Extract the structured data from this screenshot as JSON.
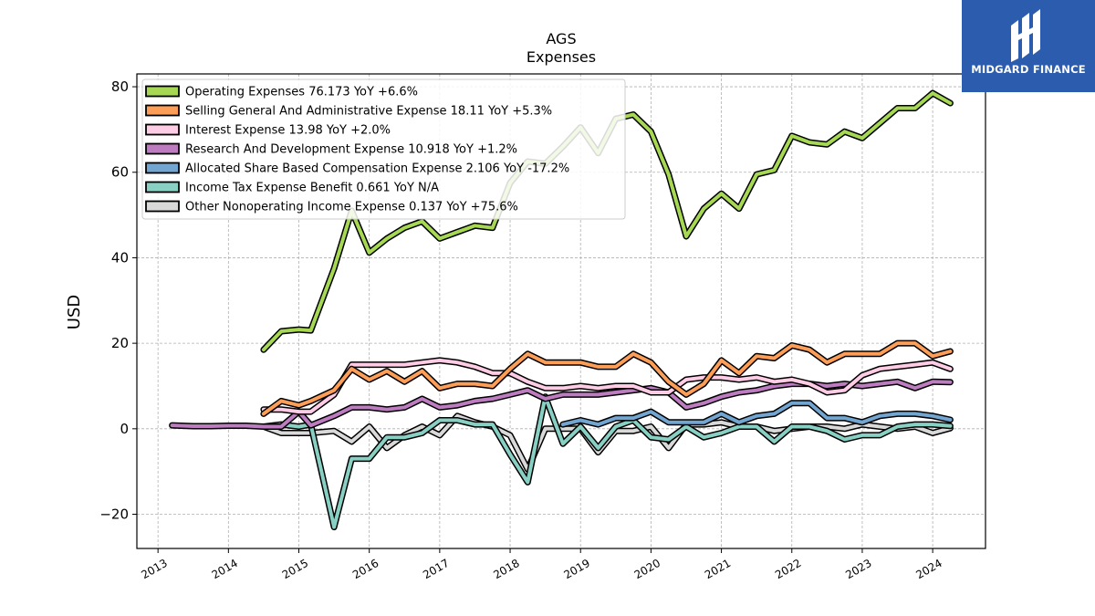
{
  "logo": {
    "text": "MIDGARD FINANCE",
    "icon": "midgard-logo-icon",
    "bg_color": "#2b5cad"
  },
  "chart_data": {
    "type": "line",
    "title": "AGS",
    "subtitle": "Expenses",
    "xlabel": "",
    "ylabel": "USD",
    "xlim": [
      2012.7,
      2024.75
    ],
    "ylim": [
      -28,
      83
    ],
    "grid": true,
    "legend_position": "top-left",
    "x_ticks": [
      "2013",
      "2014",
      "2015",
      "2016",
      "2017",
      "2018",
      "2019",
      "2020",
      "2021",
      "2022",
      "2023",
      "2024"
    ],
    "y_ticks": [
      80,
      60,
      40,
      20,
      0,
      -20
    ],
    "y_tick_labels": [
      "80",
      "60",
      "40",
      "20",
      "0",
      "−20"
    ],
    "series": [
      {
        "name": "Operating Expenses",
        "legend": "Operating Expenses  76.173 YoY +6.6%",
        "color": "#a6d854",
        "x": [
          2014.5,
          2014.75,
          2015.0,
          2015.17,
          2015.5,
          2015.75,
          2016.0,
          2016.25,
          2016.5,
          2016.75,
          2017.0,
          2017.25,
          2017.5,
          2017.75,
          2018.0,
          2018.25,
          2018.5,
          2018.75,
          2019.0,
          2019.25,
          2019.5,
          2019.75,
          2020.0,
          2020.25,
          2020.5,
          2020.75,
          2021.0,
          2021.25,
          2021.5,
          2021.75,
          2022.0,
          2022.25,
          2022.5,
          2022.75,
          2023.0,
          2023.25,
          2023.5,
          2023.75,
          2024.0,
          2024.25
        ],
        "y": [
          18.5,
          22.8,
          23.2,
          23.0,
          37.5,
          51.0,
          41.2,
          44.5,
          47.0,
          48.5,
          44.5,
          46.0,
          47.5,
          47.0,
          57.5,
          62.5,
          62.0,
          66.0,
          70.5,
          64.5,
          72.5,
          73.5,
          69.5,
          59.5,
          45.0,
          51.5,
          55.0,
          51.5,
          59.5,
          60.5,
          68.5,
          67.0,
          66.5,
          69.5,
          68.0,
          71.5,
          75.0,
          75.0,
          78.5,
          76.173
        ]
      },
      {
        "name": "Selling General And Administrative Expense",
        "legend": "Selling General And Administrative Expense  18.11 YoY +5.3%",
        "color": "#fc9e58",
        "x": [
          2014.5,
          2014.75,
          2015.0,
          2015.17,
          2015.5,
          2015.75,
          2016.0,
          2016.25,
          2016.5,
          2016.75,
          2017.0,
          2017.25,
          2017.5,
          2017.75,
          2018.0,
          2018.25,
          2018.5,
          2018.75,
          2019.0,
          2019.25,
          2019.5,
          2019.75,
          2020.0,
          2020.25,
          2020.5,
          2020.75,
          2021.0,
          2021.25,
          2021.5,
          2021.75,
          2022.0,
          2022.25,
          2022.5,
          2022.75,
          2023.0,
          2023.25,
          2023.5,
          2023.75,
          2024.0,
          2024.25
        ],
        "y": [
          3.5,
          6.5,
          5.5,
          6.5,
          9.0,
          14.0,
          11.5,
          13.5,
          11.0,
          13.5,
          9.5,
          10.5,
          10.5,
          10.0,
          14.0,
          17.5,
          15.5,
          15.5,
          15.5,
          14.5,
          14.5,
          17.5,
          15.5,
          11.0,
          8.0,
          10.5,
          16.0,
          13.0,
          17.0,
          16.5,
          19.5,
          18.5,
          15.5,
          17.5,
          17.5,
          17.5,
          20.0,
          20.0,
          17.0,
          18.11
        ]
      },
      {
        "name": "Interest Expense",
        "legend": "Interest Expense  13.98 YoY +2.0%",
        "color": "#ffcce6",
        "x": [
          2014.5,
          2014.75,
          2015.0,
          2015.17,
          2015.5,
          2015.75,
          2016.0,
          2016.25,
          2016.5,
          2016.75,
          2017.0,
          2017.25,
          2017.5,
          2017.75,
          2018.0,
          2018.25,
          2018.5,
          2018.75,
          2019.0,
          2019.25,
          2019.5,
          2019.75,
          2020.0,
          2020.25,
          2020.5,
          2020.75,
          2021.0,
          2021.25,
          2021.5,
          2021.75,
          2022.0,
          2022.25,
          2022.5,
          2022.75,
          2023.0,
          2023.25,
          2023.5,
          2023.75,
          2024.0,
          2024.25
        ],
        "y": [
          4.5,
          4.5,
          4.0,
          4.0,
          8.0,
          15.0,
          15.0,
          15.0,
          15.0,
          15.5,
          16.0,
          15.5,
          14.5,
          13.0,
          13.0,
          11.0,
          9.5,
          9.5,
          10.0,
          9.5,
          10.0,
          10.0,
          8.5,
          8.5,
          11.5,
          12.0,
          12.0,
          11.5,
          12.0,
          11.0,
          11.5,
          10.5,
          8.5,
          9.0,
          12.5,
          14.0,
          14.5,
          15.0,
          15.5,
          13.98
        ]
      },
      {
        "name": "Research And Development Expense",
        "legend": "Research And Development Expense  10.918 YoY +1.2%",
        "color": "#bd7cc0",
        "x": [
          2013.2,
          2013.5,
          2013.75,
          2014.0,
          2014.25,
          2014.5,
          2014.75,
          2015.0,
          2015.17,
          2015.5,
          2015.75,
          2016.0,
          2016.25,
          2016.5,
          2016.75,
          2017.0,
          2017.25,
          2017.5,
          2017.75,
          2018.0,
          2018.25,
          2018.5,
          2018.75,
          2019.0,
          2019.25,
          2019.5,
          2019.75,
          2020.0,
          2020.25,
          2020.5,
          2020.75,
          2021.0,
          2021.25,
          2021.5,
          2021.75,
          2022.0,
          2022.25,
          2022.5,
          2022.75,
          2023.0,
          2023.25,
          2023.5,
          2023.75,
          2024.0,
          2024.25
        ],
        "y": [
          0.8,
          0.6,
          0.6,
          0.7,
          0.7,
          0.5,
          0.5,
          4.0,
          0.8,
          3.0,
          5.0,
          5.0,
          4.5,
          5.0,
          7.0,
          5.0,
          5.5,
          6.5,
          7.0,
          8.0,
          9.0,
          7.0,
          8.0,
          8.0,
          8.0,
          8.5,
          9.0,
          9.5,
          8.5,
          5.0,
          6.0,
          7.5,
          8.5,
          9.0,
          10.0,
          10.5,
          10.5,
          10.0,
          10.5,
          10.0,
          10.5,
          11.0,
          9.5,
          11.0,
          10.918
        ]
      },
      {
        "name": "Allocated Share Based Compensation Expense",
        "legend": "Allocated Share Based Compensation Expense  2.106 YoY -17.2%",
        "color": "#72a6d1",
        "x": [
          2018.75,
          2019.0,
          2019.25,
          2019.5,
          2019.75,
          2020.0,
          2020.25,
          2020.5,
          2020.75,
          2021.0,
          2021.25,
          2021.5,
          2021.75,
          2022.0,
          2022.25,
          2022.5,
          2022.75,
          2023.0,
          2023.25,
          2023.5,
          2023.75,
          2024.0,
          2024.25
        ],
        "y": [
          1.0,
          2.0,
          1.0,
          2.5,
          2.5,
          4.0,
          1.5,
          1.5,
          1.5,
          3.5,
          1.5,
          3.0,
          3.5,
          6.0,
          6.0,
          2.5,
          2.5,
          1.5,
          3.0,
          3.5,
          3.5,
          3.0,
          2.106
        ]
      },
      {
        "name": "Income Tax Expense Benefit",
        "legend": "Income Tax Expense Benefit  0.661 YoY N/A",
        "color": "#88d0c3",
        "x": [
          2014.5,
          2014.75,
          2015.0,
          2015.17,
          2015.5,
          2015.75,
          2016.0,
          2016.25,
          2016.5,
          2016.75,
          2017.0,
          2017.25,
          2017.5,
          2017.75,
          2018.0,
          2018.25,
          2018.5,
          2018.75,
          2019.0,
          2019.25,
          2019.5,
          2019.75,
          2020.0,
          2020.25,
          2020.5,
          2020.75,
          2021.0,
          2021.25,
          2021.5,
          2021.75,
          2022.0,
          2022.25,
          2022.5,
          2022.75,
          2023.0,
          2023.25,
          2023.5,
          2023.75,
          2024.0,
          2024.25
        ],
        "y": [
          0.5,
          1.0,
          0.5,
          1.0,
          -23.0,
          -7.0,
          -7.0,
          -2.0,
          -2.0,
          -1.0,
          2.0,
          2.0,
          1.0,
          1.0,
          -6.0,
          -12.5,
          7.5,
          -3.5,
          0.5,
          -4.5,
          0.5,
          2.0,
          -2.0,
          -2.5,
          0.5,
          -2.0,
          -1.0,
          0.5,
          0.5,
          -3.0,
          0.5,
          0.5,
          -0.5,
          -2.5,
          -1.5,
          -1.5,
          0.5,
          1.0,
          1.0,
          0.661
        ]
      },
      {
        "name": "Other Nonoperating Income Expense",
        "legend": "Other Nonoperating Income Expense  0.137 YoY +75.6%",
        "color": "#d9d9d9",
        "x": [
          2014.5,
          2014.75,
          2015.0,
          2015.17,
          2015.5,
          2015.75,
          2016.0,
          2016.25,
          2016.5,
          2016.75,
          2017.0,
          2017.25,
          2017.5,
          2017.75,
          2018.0,
          2018.25,
          2018.5,
          2018.75,
          2019.0,
          2019.25,
          2019.5,
          2019.75,
          2020.0,
          2020.25,
          2020.5,
          2020.75,
          2021.0,
          2021.25,
          2021.5,
          2021.75,
          2022.0,
          2022.25,
          2022.5,
          2022.75,
          2023.0,
          2023.25,
          2023.5,
          2023.75,
          2024.0,
          2024.25
        ],
        "y": [
          0.5,
          -1.0,
          -1.0,
          -1.0,
          -0.5,
          -3.0,
          0.5,
          -4.5,
          -1.5,
          0.5,
          -1.5,
          3.0,
          1.5,
          0.5,
          -1.5,
          -9.5,
          0.0,
          0.0,
          0.0,
          -5.5,
          -0.5,
          -0.5,
          0.5,
          -4.5,
          1.0,
          1.0,
          1.5,
          0.5,
          0.5,
          -0.5,
          0.0,
          0.5,
          0.5,
          0.0,
          1.0,
          0.5,
          0.0,
          0.5,
          -1.0,
          0.137
        ]
      }
    ]
  }
}
